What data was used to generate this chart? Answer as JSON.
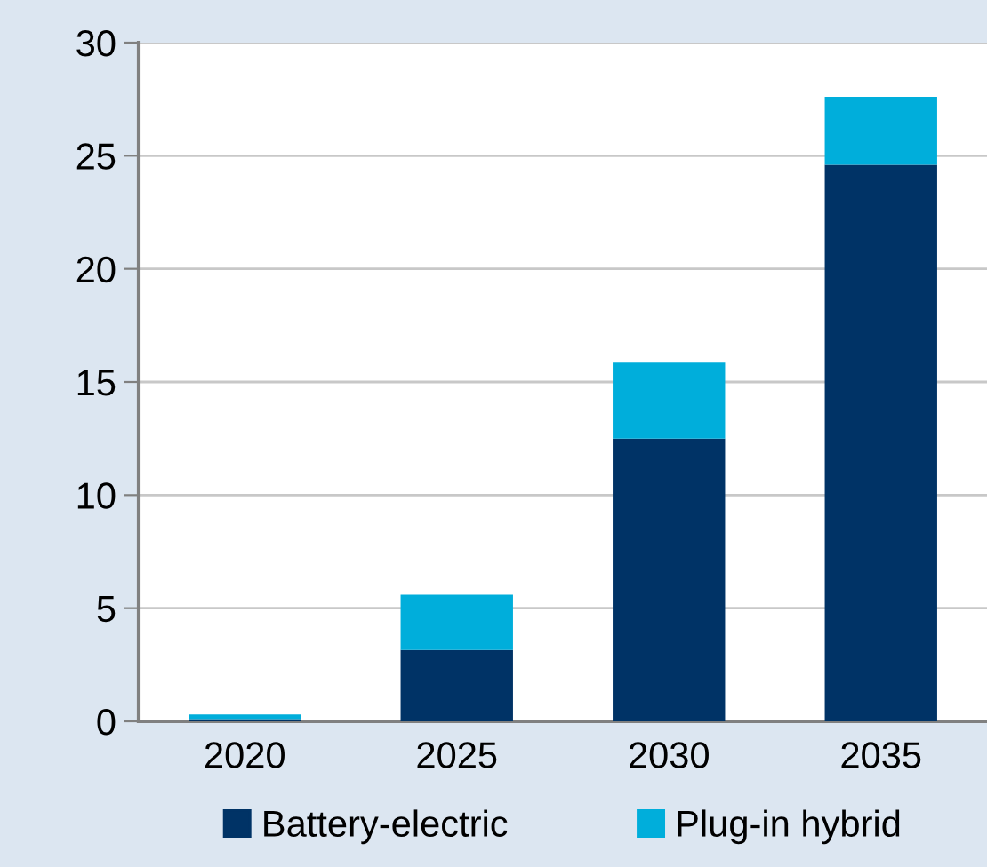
{
  "chart_data": {
    "type": "bar",
    "stacked": true,
    "categories": [
      "2020",
      "2025",
      "2030",
      "2035"
    ],
    "series": [
      {
        "name": "Battery-electric",
        "color": "#003366",
        "values": [
          0.1,
          3.15,
          12.5,
          24.6
        ]
      },
      {
        "name": "Plug-in hybrid",
        "color": "#00aedb",
        "values": [
          0.2,
          2.45,
          3.35,
          3.0
        ]
      }
    ],
    "ylim": [
      0,
      30
    ],
    "yticks": [
      0,
      5,
      10,
      15,
      20,
      25,
      30
    ],
    "grid": "y",
    "legend": "bottom"
  }
}
